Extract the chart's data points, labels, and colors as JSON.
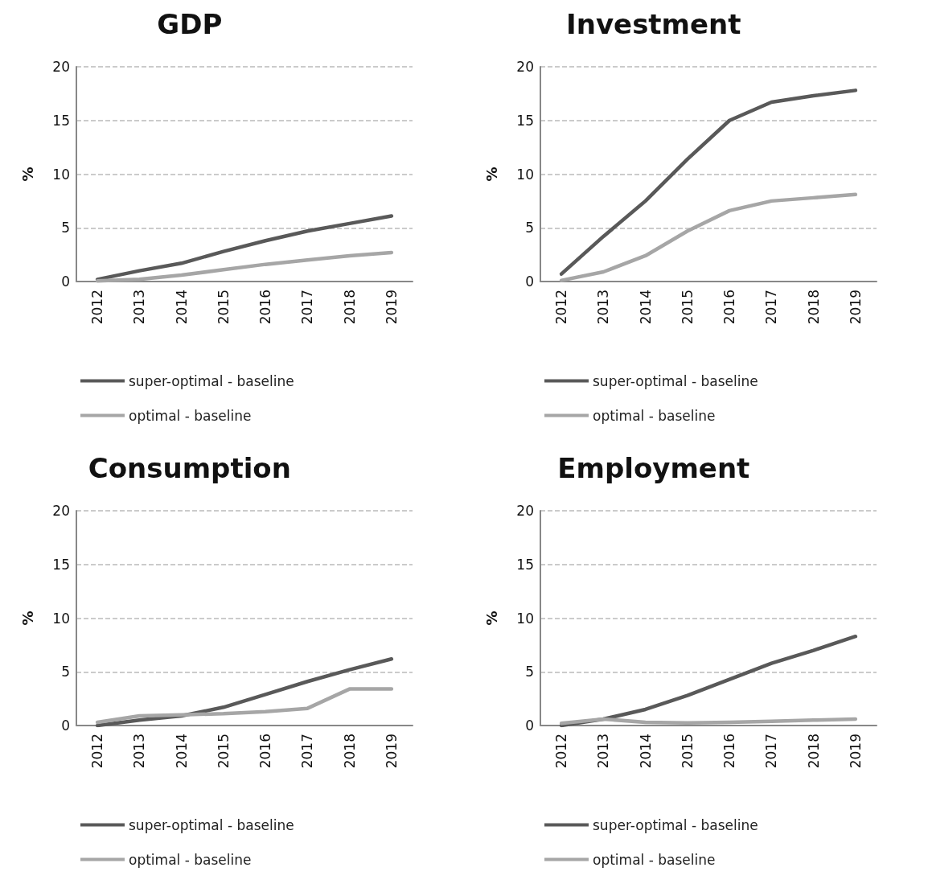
{
  "chart_data": [
    {
      "type": "line",
      "title": "GDP",
      "ylabel": "%",
      "categories": [
        "2012",
        "2013",
        "2014",
        "2015",
        "2016",
        "2017",
        "2018",
        "2019"
      ],
      "ylim": [
        0,
        20
      ],
      "yticks": [
        0,
        5,
        10,
        15,
        20
      ],
      "grid": "y",
      "legend": "bottom",
      "marker": "none",
      "line_style": "solid",
      "series": [
        {
          "name": "super-optimal - baseline",
          "color": "#595959",
          "values": [
            0.2,
            1.0,
            1.7,
            2.8,
            3.8,
            4.7,
            5.4,
            6.1
          ]
        },
        {
          "name": "optimal - baseline",
          "color": "#a6a6a6",
          "values": [
            0.05,
            0.2,
            0.6,
            1.1,
            1.6,
            2.0,
            2.4,
            2.7
          ]
        }
      ]
    },
    {
      "type": "line",
      "title": "Investment",
      "ylabel": "%",
      "categories": [
        "2012",
        "2013",
        "2014",
        "2015",
        "2016",
        "2017",
        "2018",
        "2019"
      ],
      "ylim": [
        0,
        20
      ],
      "yticks": [
        0,
        5,
        10,
        15,
        20
      ],
      "grid": "y",
      "legend": "bottom",
      "marker": "none",
      "line_style": "solid",
      "series": [
        {
          "name": "super-optimal - baseline",
          "color": "#595959",
          "values": [
            0.7,
            4.2,
            7.5,
            11.4,
            15.0,
            16.7,
            17.3,
            17.8
          ]
        },
        {
          "name": "optimal - baseline",
          "color": "#a6a6a6",
          "values": [
            0.1,
            0.9,
            2.4,
            4.7,
            6.6,
            7.5,
            7.8,
            8.1
          ]
        }
      ]
    },
    {
      "type": "line",
      "title": "Consumption",
      "ylabel": "%",
      "categories": [
        "2012",
        "2013",
        "2014",
        "2015",
        "2016",
        "2017",
        "2018",
        "2019"
      ],
      "ylim": [
        0,
        20
      ],
      "yticks": [
        0,
        5,
        10,
        15,
        20
      ],
      "grid": "y",
      "legend": "bottom",
      "marker": "none",
      "line_style": "solid",
      "series": [
        {
          "name": "super-optimal - baseline",
          "color": "#595959",
          "values": [
            0.0,
            0.5,
            0.9,
            1.7,
            2.9,
            4.1,
            5.2,
            6.2
          ]
        },
        {
          "name": "optimal - baseline",
          "color": "#a6a6a6",
          "values": [
            0.3,
            0.9,
            1.0,
            1.1,
            1.3,
            1.6,
            3.4,
            3.4
          ]
        }
      ]
    },
    {
      "type": "line",
      "title": "Employment",
      "ylabel": "%",
      "categories": [
        "2012",
        "2013",
        "2014",
        "2015",
        "2016",
        "2017",
        "2018",
        "2019"
      ],
      "ylim": [
        0,
        20
      ],
      "yticks": [
        0,
        5,
        10,
        15,
        20
      ],
      "grid": "y",
      "legend": "bottom",
      "marker": "none",
      "line_style": "solid",
      "series": [
        {
          "name": "super-optimal - baseline",
          "color": "#595959",
          "values": [
            0.0,
            0.6,
            1.5,
            2.8,
            4.3,
            5.8,
            7.0,
            8.3
          ]
        },
        {
          "name": "optimal - baseline",
          "color": "#a6a6a6",
          "values": [
            0.2,
            0.6,
            0.3,
            0.25,
            0.3,
            0.4,
            0.5,
            0.6
          ]
        }
      ]
    }
  ]
}
